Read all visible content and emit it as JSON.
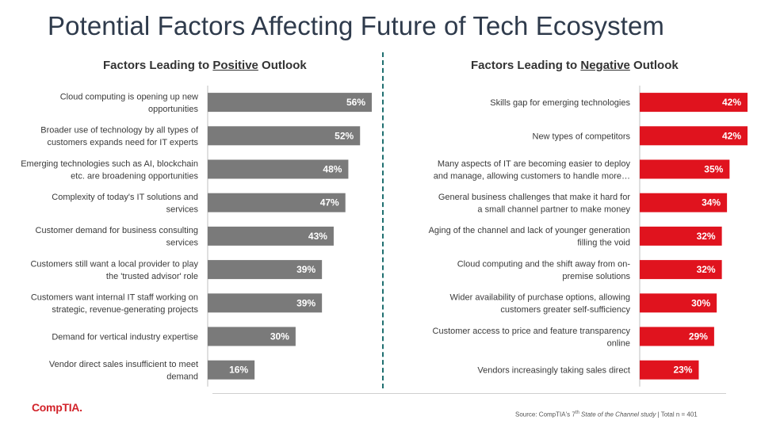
{
  "title": "Potential Factors Affecting Future of Tech Ecosystem",
  "chart_data": [
    {
      "type": "bar",
      "orientation": "horizontal",
      "title": "Factors Leading to Positive Outlook",
      "title_prefix": "Factors Leading to ",
      "title_emphasis": "Positive",
      "title_suffix": " Outlook",
      "color": "#7a7a7a",
      "categories": [
        [
          "Cloud computing is opening up new",
          "opportunities"
        ],
        [
          "Broader use of technology by all types of",
          "customers expands need for IT experts"
        ],
        [
          "Emerging technologies such as AI, blockchain",
          "etc. are broadening opportunities"
        ],
        [
          "Complexity of today's IT solutions and",
          "services"
        ],
        [
          "Customer demand for business consulting",
          "services"
        ],
        [
          "Customers still want a local provider to play",
          "the 'trusted advisor' role"
        ],
        [
          "Customers want internal IT staff working on",
          "strategic, revenue-generating projects"
        ],
        [
          "Demand for vertical industry expertise"
        ],
        [
          "Vendor direct sales insufficient to meet",
          "demand"
        ]
      ],
      "values": [
        56,
        52,
        48,
        47,
        43,
        39,
        39,
        30,
        16
      ],
      "value_labels": [
        "56%",
        "52%",
        "48%",
        "47%",
        "43%",
        "39%",
        "39%",
        "30%",
        "16%"
      ],
      "unit": "%"
    },
    {
      "type": "bar",
      "orientation": "horizontal",
      "title": "Factors Leading to Negative Outlook",
      "title_prefix": "Factors Leading to ",
      "title_emphasis": "Negative",
      "title_suffix": " Outlook",
      "color": "#e0131e",
      "categories": [
        [
          "Skills gap for emerging technologies"
        ],
        [
          "New types of competitors"
        ],
        [
          "Many aspects of IT are becoming easier to deploy",
          "and manage, allowing customers to handle more…"
        ],
        [
          "General business challenges that make it hard for",
          "a small channel partner to make money"
        ],
        [
          "Aging of the channel and lack of younger generation",
          "filling the void"
        ],
        [
          "Cloud computing and the shift away from on-",
          "premise solutions"
        ],
        [
          "Wider availability of purchase options, allowing",
          "customers greater self-sufficiency"
        ],
        [
          "Customer access to price and feature transparency",
          "online"
        ],
        [
          "Vendors increasingly taking sales direct"
        ]
      ],
      "values": [
        42,
        42,
        35,
        34,
        32,
        32,
        30,
        29,
        23
      ],
      "value_labels": [
        "42%",
        "42%",
        "35%",
        "34%",
        "32%",
        "32%",
        "30%",
        "29%",
        "23%"
      ],
      "unit": "%"
    }
  ],
  "footer": {
    "logo": "CompTIA.",
    "source_prefix": "Source: CompTIA's 7",
    "source_sup": "th",
    "source_study": "State of the Channel study",
    "source_suffix": " | Total n = 401"
  }
}
